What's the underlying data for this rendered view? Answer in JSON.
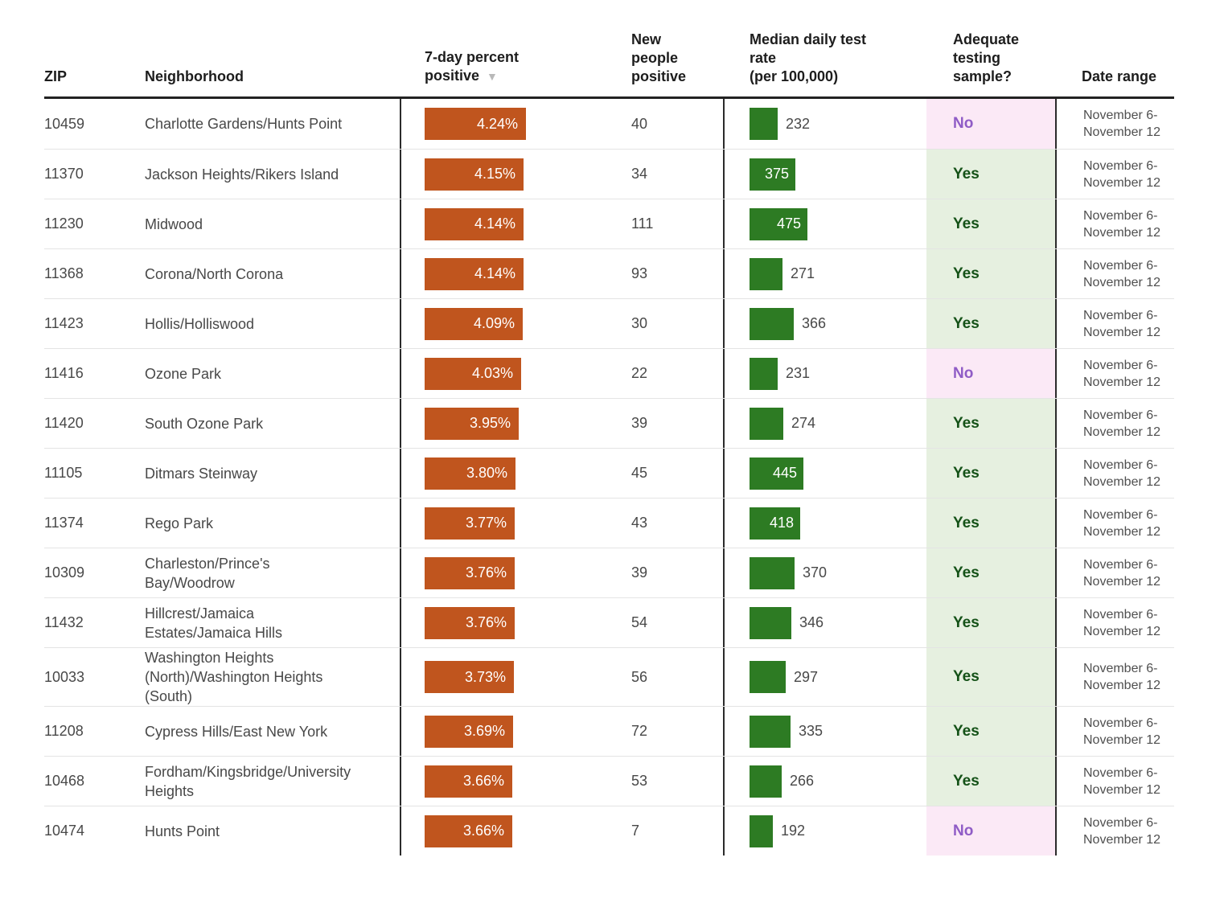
{
  "header": {
    "zip": "ZIP",
    "neighborhood": "Neighborhood",
    "pct": "7-day percent\npositive",
    "new_people": "New\npeople\npositive",
    "rate": "Median daily test\nrate\n(per 100,000)",
    "adequate": "Adequate\ntesting\nsample?",
    "date": "Date range",
    "sort_icon": "▼"
  },
  "colors": {
    "bar_orange": "#c0551e",
    "bar_green": "#2d7b23",
    "yes_bg": "#e6f0e0",
    "yes_text": "#155218",
    "no_bg": "#fbe9f6",
    "no_text": "#8f5cc6"
  },
  "chart_data": {
    "type": "table",
    "title": "",
    "columns": [
      "ZIP",
      "Neighborhood",
      "7-day percent positive",
      "New people positive",
      "Median daily test rate (per 100,000)",
      "Adequate testing sample?",
      "Date range"
    ],
    "bar_columns": {
      "pct_positive": {
        "axis_max": 4.24,
        "color": "#c0551e"
      },
      "test_rate": {
        "axis_max": 475,
        "color": "#2d7b23"
      }
    },
    "adequate_values": {
      "yes": "Yes",
      "no": "No"
    },
    "rows": [
      {
        "zip": "10459",
        "neighborhood": "Charlotte Gardens/Hunts Point",
        "pct_label": "4.24%",
        "pct_value": 4.24,
        "new_people": "40",
        "test_rate": 232,
        "adequate": "No",
        "date_range": "November 6-\nNovember 12"
      },
      {
        "zip": "11370",
        "neighborhood": "Jackson Heights/Rikers Island",
        "pct_label": "4.15%",
        "pct_value": 4.15,
        "new_people": "34",
        "test_rate": 375,
        "adequate": "Yes",
        "date_range": "November 6-\nNovember 12"
      },
      {
        "zip": "11230",
        "neighborhood": "Midwood",
        "pct_label": "4.14%",
        "pct_value": 4.14,
        "new_people": "111",
        "test_rate": 475,
        "adequate": "Yes",
        "date_range": "November 6-\nNovember 12"
      },
      {
        "zip": "11368",
        "neighborhood": "Corona/North Corona",
        "pct_label": "4.14%",
        "pct_value": 4.14,
        "new_people": "93",
        "test_rate": 271,
        "adequate": "Yes",
        "date_range": "November 6-\nNovember 12"
      },
      {
        "zip": "11423",
        "neighborhood": "Hollis/Holliswood",
        "pct_label": "4.09%",
        "pct_value": 4.09,
        "new_people": "30",
        "test_rate": 366,
        "adequate": "Yes",
        "date_range": "November 6-\nNovember 12"
      },
      {
        "zip": "11416",
        "neighborhood": "Ozone Park",
        "pct_label": "4.03%",
        "pct_value": 4.03,
        "new_people": "22",
        "test_rate": 231,
        "adequate": "No",
        "date_range": "November 6-\nNovember 12"
      },
      {
        "zip": "11420",
        "neighborhood": "South Ozone Park",
        "pct_label": "3.95%",
        "pct_value": 3.95,
        "new_people": "39",
        "test_rate": 274,
        "adequate": "Yes",
        "date_range": "November 6-\nNovember 12"
      },
      {
        "zip": "11105",
        "neighborhood": "Ditmars Steinway",
        "pct_label": "3.80%",
        "pct_value": 3.8,
        "new_people": "45",
        "test_rate": 445,
        "adequate": "Yes",
        "date_range": "November 6-\nNovember 12"
      },
      {
        "zip": "11374",
        "neighborhood": "Rego Park",
        "pct_label": "3.77%",
        "pct_value": 3.77,
        "new_people": "43",
        "test_rate": 418,
        "adequate": "Yes",
        "date_range": "November 6-\nNovember 12"
      },
      {
        "zip": "10309",
        "neighborhood": "Charleston/Prince's Bay/Woodrow",
        "pct_label": "3.76%",
        "pct_value": 3.76,
        "new_people": "39",
        "test_rate": 370,
        "adequate": "Yes",
        "date_range": "November 6-\nNovember 12"
      },
      {
        "zip": "11432",
        "neighborhood": "Hillcrest/Jamaica Estates/Jamaica Hills",
        "pct_label": "3.76%",
        "pct_value": 3.76,
        "new_people": "54",
        "test_rate": 346,
        "adequate": "Yes",
        "date_range": "November 6-\nNovember 12"
      },
      {
        "zip": "10033",
        "neighborhood": "Washington Heights (North)/Washington Heights (South)",
        "pct_label": "3.73%",
        "pct_value": 3.73,
        "new_people": "56",
        "test_rate": 297,
        "adequate": "Yes",
        "date_range": "November 6-\nNovember 12"
      },
      {
        "zip": "11208",
        "neighborhood": "Cypress Hills/East New York",
        "pct_label": "3.69%",
        "pct_value": 3.69,
        "new_people": "72",
        "test_rate": 335,
        "adequate": "Yes",
        "date_range": "November 6-\nNovember 12"
      },
      {
        "zip": "10468",
        "neighborhood": "Fordham/Kingsbridge/University Heights",
        "pct_label": "3.66%",
        "pct_value": 3.66,
        "new_people": "53",
        "test_rate": 266,
        "adequate": "Yes",
        "date_range": "November 6-\nNovember 12"
      },
      {
        "zip": "10474",
        "neighborhood": "Hunts Point",
        "pct_label": "3.66%",
        "pct_value": 3.66,
        "new_people": "7",
        "test_rate": 192,
        "adequate": "No",
        "date_range": "November 6-\nNovember 12"
      }
    ]
  }
}
